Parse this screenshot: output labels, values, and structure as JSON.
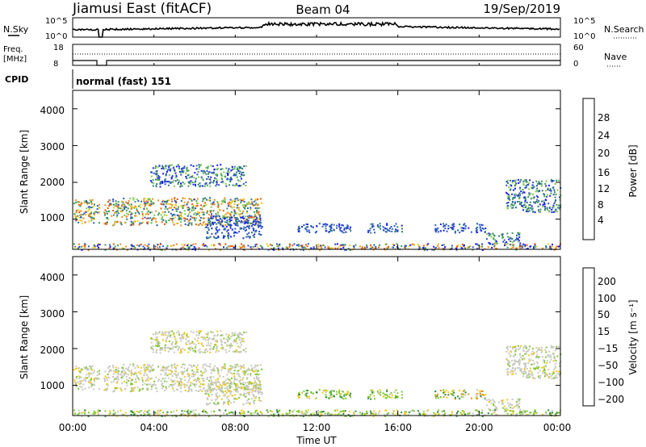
{
  "header": {
    "station": "Jiamusi East (fitACF)",
    "beam": "Beam 04",
    "date": "19/Sep/2019"
  },
  "panels": {
    "nsky_label": "N.Sky",
    "nsky_ticks": [
      "10^5",
      "10^0"
    ],
    "nsearch_label": "N.Search",
    "nsearch_ticks": [
      "10^5",
      "10^0"
    ],
    "freq_label": "Freq.",
    "freq_unit": "[MHz]",
    "freq_ticks": [
      "18",
      "8"
    ],
    "nave_label": "Nave",
    "nave_ticks": [
      "60",
      "0"
    ],
    "cpid_label": "CPID",
    "cpid_text": "normal (fast) 151"
  },
  "axes": {
    "ylabel": "Slant Range [km]",
    "xlabel": "Time UT",
    "range_ticks": [
      "1000",
      "2000",
      "3000",
      "4000"
    ],
    "time_ticks": [
      "00:00",
      "04:00",
      "08:00",
      "12:00",
      "16:00",
      "20:00",
      "00:00"
    ]
  },
  "colorbars": {
    "power": {
      "label": "Power [dB]",
      "ticks": [
        "4",
        "8",
        "12",
        "16",
        "20",
        "24",
        "28"
      ],
      "colors": [
        "#1a1aff",
        "#2a55c8",
        "#2e7d7a",
        "#3a9a5a",
        "#7ec850",
        "#f0c818",
        "#f08c18",
        "#e85a10",
        "#d81e0c"
      ]
    },
    "velocity": {
      "label": "Velocity [m s⁻¹]",
      "ticks": [
        "200",
        "100",
        "50",
        "15",
        "−15",
        "−50",
        "−100",
        "−200"
      ],
      "colors": [
        "#1a1aff",
        "#1e4ab8",
        "#2a8a3a",
        "#7ec830",
        "#c8c8c0",
        "#c8c8c0",
        "#f0c818",
        "#f08c18",
        "#f04a10",
        "#e01010"
      ]
    }
  },
  "chart_data": {
    "type": "heatmap",
    "title": "Jiamusi East (fitACF) Beam 04 19/Sep/2019",
    "xlabel": "Time UT",
    "ylabel": "Slant Range [km]",
    "x_range_hours": [
      0,
      24
    ],
    "y_range_km": [
      180,
      4500
    ],
    "scatter_regions": [
      {
        "t0": 0.0,
        "t1": 1.3,
        "r0": 900,
        "r1": 1550,
        "power": "high",
        "velocity": "near zero"
      },
      {
        "t0": 1.5,
        "t1": 9.3,
        "r0": 850,
        "r1": 1600,
        "power": "high",
        "velocity": "near zero"
      },
      {
        "t0": 3.8,
        "t1": 8.5,
        "r0": 1900,
        "r1": 2500,
        "power": "medium",
        "velocity": "near zero"
      },
      {
        "t0": 6.5,
        "t1": 9.3,
        "r0": 500,
        "r1": 1100,
        "power": "low",
        "velocity": "near zero"
      },
      {
        "t0": 11.0,
        "t1": 13.8,
        "r0": 650,
        "r1": 900,
        "power": "low",
        "velocity": "small positive"
      },
      {
        "t0": 14.5,
        "t1": 16.2,
        "r0": 650,
        "r1": 900,
        "power": "low",
        "velocity": "small positive"
      },
      {
        "t0": 17.8,
        "t1": 20.3,
        "r0": 650,
        "r1": 900,
        "power": "low",
        "velocity": "mixed"
      },
      {
        "t0": 20.3,
        "t1": 22.0,
        "r0": 350,
        "r1": 650,
        "power": "medium",
        "velocity": "near zero"
      },
      {
        "t0": 21.3,
        "t1": 24.0,
        "r0": 1200,
        "r1": 2100,
        "power": "medium",
        "velocity": "near zero"
      },
      {
        "t0": 0.0,
        "t1": 24.0,
        "r0": 180,
        "r1": 350,
        "power": "mixed",
        "velocity": "small positive"
      }
    ],
    "cpid_gaps_hours": [
      [
        1.3,
        1.5
      ]
    ]
  }
}
